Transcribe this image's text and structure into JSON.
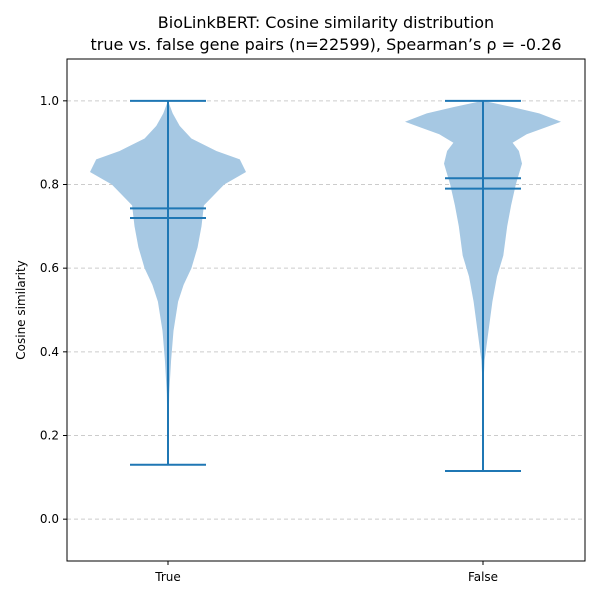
{
  "chart_data": {
    "type": "violin",
    "title_line1": "BioLinkBERT: Cosine similarity distribution",
    "title_line2": "true vs. false gene pairs (n=22599), Spearman’s ρ = -0.26",
    "xlabel": "",
    "ylabel": "Cosine similarity",
    "categories": [
      "True",
      "False"
    ],
    "ylim": [
      -0.1,
      1.1
    ],
    "yticks": [
      0.0,
      0.2,
      0.4,
      0.6,
      0.8,
      1.0
    ],
    "ytick_labels": [
      "0.0",
      "0.2",
      "0.4",
      "0.6",
      "0.8",
      "1.0"
    ],
    "grid": "y-dashed",
    "colors": {
      "body": "#a6c8e3",
      "lines": "#1f77b4",
      "grid": "#cccccc"
    },
    "series": [
      {
        "category": "True",
        "min": 0.13,
        "max": 1.0,
        "mean": 0.743,
        "median": 0.72,
        "density": [
          [
            0.13,
            0.0
          ],
          [
            0.2,
            0.005
          ],
          [
            0.3,
            0.015
          ],
          [
            0.38,
            0.04
          ],
          [
            0.45,
            0.07
          ],
          [
            0.52,
            0.13
          ],
          [
            0.56,
            0.2
          ],
          [
            0.6,
            0.3
          ],
          [
            0.65,
            0.38
          ],
          [
            0.7,
            0.43
          ],
          [
            0.75,
            0.46
          ],
          [
            0.8,
            0.72
          ],
          [
            0.83,
            1.0
          ],
          [
            0.86,
            0.92
          ],
          [
            0.88,
            0.62
          ],
          [
            0.91,
            0.3
          ],
          [
            0.94,
            0.15
          ],
          [
            0.97,
            0.06
          ],
          [
            1.0,
            0.0
          ]
        ]
      },
      {
        "category": "False",
        "min": 0.115,
        "max": 1.0,
        "mean": 0.815,
        "median": 0.79,
        "density": [
          [
            0.115,
            0.0
          ],
          [
            0.3,
            0.0
          ],
          [
            0.38,
            0.02
          ],
          [
            0.45,
            0.07
          ],
          [
            0.52,
            0.12
          ],
          [
            0.58,
            0.18
          ],
          [
            0.63,
            0.26
          ],
          [
            0.7,
            0.31
          ],
          [
            0.75,
            0.36
          ],
          [
            0.8,
            0.42
          ],
          [
            0.85,
            0.5
          ],
          [
            0.88,
            0.46
          ],
          [
            0.9,
            0.38
          ],
          [
            0.92,
            0.56
          ],
          [
            0.95,
            1.0
          ],
          [
            0.97,
            0.72
          ],
          [
            0.985,
            0.38
          ],
          [
            1.0,
            0.0
          ]
        ]
      }
    ]
  }
}
